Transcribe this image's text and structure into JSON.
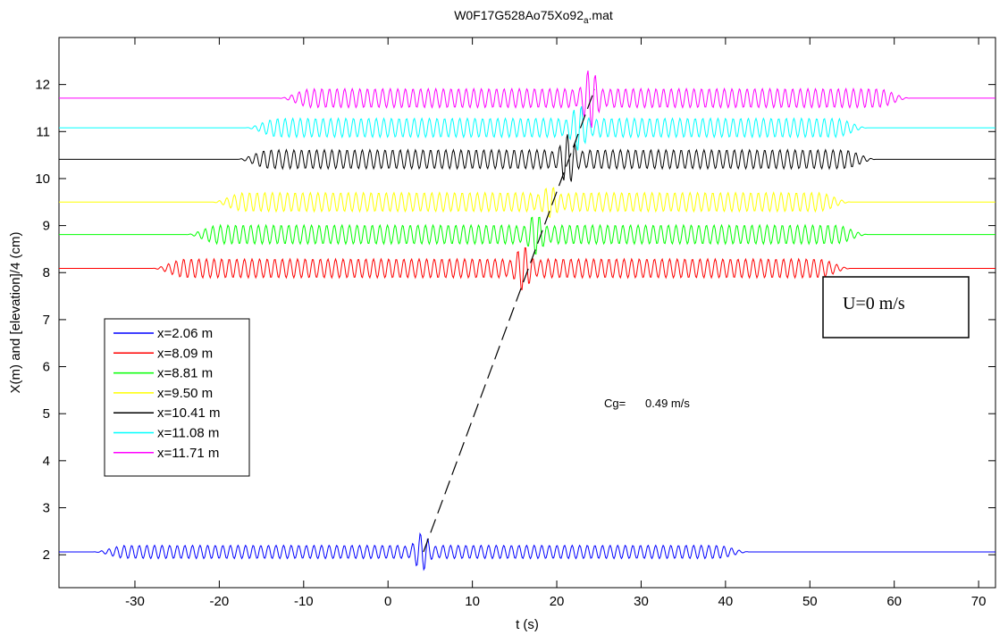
{
  "chart_data": {
    "type": "line",
    "title": "W0F17G528Ao75Xo92",
    "title_subscript": "a",
    "title_suffix": ".mat",
    "xlabel": "t (s)",
    "ylabel": "X(m) and  [elevation]/4 (cm)",
    "xlim": [
      -39,
      72
    ],
    "ylim": [
      1.3,
      13.0
    ],
    "xticks": [
      -30,
      -20,
      -10,
      0,
      10,
      20,
      30,
      40,
      50,
      60,
      70
    ],
    "yticks": [
      2,
      3,
      4,
      5,
      6,
      7,
      8,
      9,
      10,
      11,
      12
    ],
    "grid": false,
    "legend_position": "left-middle",
    "series": [
      {
        "name": "x=2.06 m",
        "color": "#0000ff",
        "baseline": 2.06,
        "packet_start": -35,
        "packet_end": 43,
        "burst_t": 4.0,
        "amplitude": 0.14,
        "burst_amplitude": 0.38
      },
      {
        "name": "x=8.09 m",
        "color": "#ff0000",
        "baseline": 8.09,
        "packet_start": -28,
        "packet_end": 55,
        "burst_t": 16.0,
        "amplitude": 0.2,
        "burst_amplitude": 0.45
      },
      {
        "name": "x=8.81 m",
        "color": "#00ff00",
        "baseline": 8.81,
        "packet_start": -24,
        "packet_end": 57,
        "burst_t": 17.5,
        "amplitude": 0.2,
        "burst_amplitude": 0.4
      },
      {
        "name": "x=9.50 m",
        "color": "#ffff00",
        "baseline": 9.5,
        "packet_start": -21,
        "packet_end": 55,
        "burst_t": 19.2,
        "amplitude": 0.2,
        "burst_amplitude": 0.3
      },
      {
        "name": "x=10.41 m",
        "color": "#000000",
        "baseline": 10.41,
        "packet_start": -18,
        "packet_end": 58,
        "burst_t": 21.3,
        "amplitude": 0.2,
        "burst_amplitude": 0.5
      },
      {
        "name": "x=11.08 m",
        "color": "#00ffff",
        "baseline": 11.08,
        "packet_start": -17,
        "packet_end": 57,
        "burst_t": 22.6,
        "amplitude": 0.2,
        "burst_amplitude": 0.45
      },
      {
        "name": "x=11.71 m",
        "color": "#ff00ff",
        "baseline": 11.71,
        "packet_start": -13,
        "packet_end": 62,
        "burst_t": 24.0,
        "amplitude": 0.2,
        "burst_amplitude": 0.6
      }
    ],
    "group_velocity_line": {
      "t": [
        4.2,
        24.5
      ],
      "x": [
        2.06,
        11.9
      ],
      "style": "dashed",
      "color": "#000000"
    },
    "annotations": {
      "cg_label": "Cg=",
      "cg_value": "0.49  m/s",
      "u_box": "U=0 m/s"
    }
  }
}
